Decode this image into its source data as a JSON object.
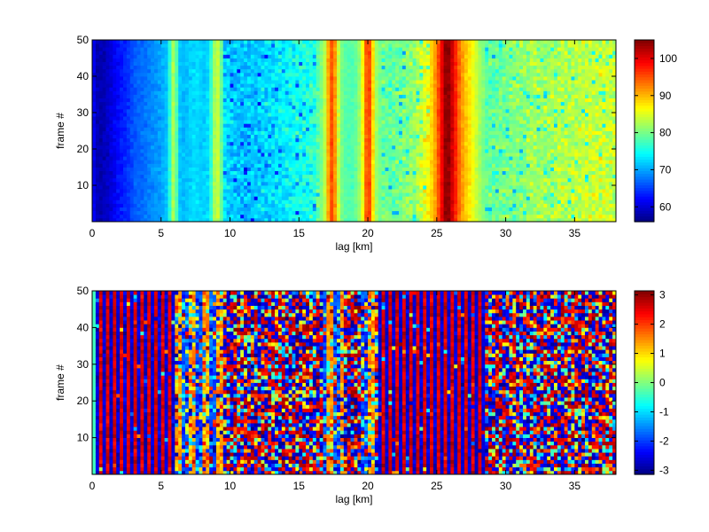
{
  "chart_data": [
    {
      "type": "heatmap",
      "title": "",
      "xlabel": "lag [km]",
      "ylabel": "frame #",
      "xlim": [
        0,
        38
      ],
      "ylim": [
        0,
        50
      ],
      "xticks": [
        0,
        5,
        10,
        15,
        20,
        25,
        30,
        35
      ],
      "yticks": [
        10,
        20,
        30,
        40,
        50
      ],
      "colormap": "jet",
      "colorbar": {
        "range": [
          56,
          105
        ],
        "ticks": [
          60,
          70,
          80,
          90,
          100
        ]
      },
      "column_profile": {
        "x": [
          0,
          0.3,
          0.5,
          1,
          1.5,
          2,
          2.5,
          3,
          3.5,
          4,
          4.5,
          5,
          5.5,
          5.8,
          6.0,
          6.3,
          6.6,
          7,
          7.5,
          8,
          8.5,
          8.8,
          9.2,
          9.6,
          10,
          11,
          12,
          13,
          14,
          15,
          16,
          16.6,
          17,
          17.2,
          17.5,
          17.8,
          18.2,
          18.8,
          19.3,
          19.7,
          20,
          20.3,
          20.7,
          21.5,
          22.5,
          23.5,
          24.3,
          24.8,
          25.3,
          25.6,
          25.9,
          26.2,
          26.6,
          27,
          27.5,
          28,
          28.3,
          28.6,
          29,
          30,
          31,
          32,
          33,
          34,
          35,
          36,
          37,
          38
        ],
        "value": [
          63,
          59,
          58,
          59,
          61,
          63,
          64,
          66,
          67,
          68,
          69,
          70,
          72,
          82,
          83,
          72,
          71,
          72,
          73,
          72,
          73,
          82,
          84,
          73,
          72,
          71,
          72,
          73,
          74,
          75,
          76,
          80,
          85,
          94,
          96,
          85,
          79,
          78,
          80,
          88,
          99,
          90,
          80,
          79,
          80,
          82,
          86,
          90,
          98,
          104,
          104,
          100,
          94,
          90,
          87,
          83,
          81,
          79,
          79,
          80,
          81,
          82,
          82,
          83,
          83,
          84,
          84,
          84
        ]
      },
      "frames": {
        "min": 1,
        "max": 50
      }
    },
    {
      "type": "heatmap",
      "title": "",
      "xlabel": "lag [km]",
      "ylabel": "frame #",
      "xlim": [
        0,
        38
      ],
      "ylim": [
        0,
        50
      ],
      "xticks": [
        0,
        5,
        10,
        15,
        20,
        25,
        30,
        35
      ],
      "yticks": [
        10,
        20,
        30,
        40,
        50
      ],
      "colormap": "jet",
      "colorbar": {
        "range": [
          -3.14,
          3.14
        ],
        "ticks": [
          -3,
          -2,
          -1,
          0,
          1,
          2,
          3
        ]
      },
      "pattern": "phase; coherent vertical stripes from 0 to ~6 and 21 to 28.5 km, noisy elsewhere",
      "frames": {
        "min": 1,
        "max": 50
      }
    }
  ]
}
